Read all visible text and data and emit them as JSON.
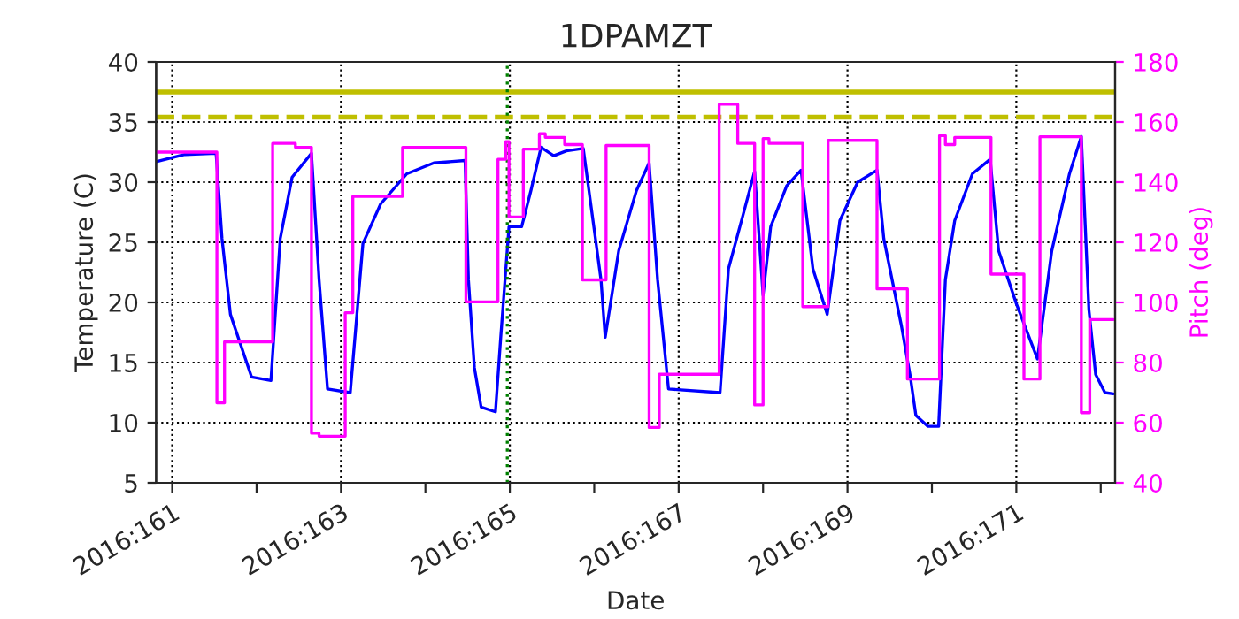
{
  "chart_data": {
    "type": "line",
    "title": "1DPAMZT",
    "xlabel": "Date",
    "ylabel": "Temperature (C)",
    "y2label": "Pitch (deg)",
    "xlim": [
      "2016-06-08T19:26",
      "2016-06-20T04:05"
    ],
    "ylim": [
      5,
      40
    ],
    "y2lim": [
      40,
      180
    ],
    "xticks": [
      {
        "value": "2016-06-09",
        "label": "2016:161"
      },
      {
        "value": "2016-06-10",
        "label": null
      },
      {
        "value": "2016-06-11",
        "label": "2016:163"
      },
      {
        "value": "2016-06-12",
        "label": null
      },
      {
        "value": "2016-06-13",
        "label": "2016:165"
      },
      {
        "value": "2016-06-14",
        "label": null
      },
      {
        "value": "2016-06-15",
        "label": "2016:167"
      },
      {
        "value": "2016-06-16",
        "label": null
      },
      {
        "value": "2016-06-17",
        "label": "2016:169"
      },
      {
        "value": "2016-06-18",
        "label": null
      },
      {
        "value": "2016-06-19",
        "label": "2016:171"
      },
      {
        "value": "2016-06-20",
        "label": null
      }
    ],
    "yticks": [
      5,
      10,
      15,
      20,
      25,
      30,
      35,
      40
    ],
    "y2ticks": [
      40,
      60,
      80,
      100,
      120,
      140,
      160,
      180
    ],
    "grid": true,
    "legend": false,
    "series": [
      {
        "color": "#0000ff",
        "x": [
          "2016-06-08T19:26",
          "2016-06-09T03:36",
          "2016-06-09T12:29",
          "2016-06-09T14:10",
          "2016-06-09T16:34",
          "2016-06-09T22:34",
          "2016-06-10T04:05",
          "2016-06-10T06:43",
          "2016-06-10T10:05",
          "2016-06-10T15:36",
          "2016-06-10T17:46",
          "2016-06-10T20:10",
          "2016-06-11T02:38",
          "2016-06-11T06:14",
          "2016-06-11T11:17",
          "2016-06-11T18:43",
          "2016-06-12T02:24",
          "2016-06-12T11:17",
          "2016-06-12T12:14",
          "2016-06-12T13:55",
          "2016-06-12T15:50",
          "2016-06-12T19:55",
          "2016-06-12T21:22",
          "2016-06-12T23:46",
          "2016-06-13T03:22",
          "2016-06-13T06:00",
          "2016-06-13T08:53",
          "2016-06-13T12:29",
          "2016-06-13T16:05",
          "2016-06-13T20:53",
          "2016-06-14T01:55",
          "2016-06-14T03:07",
          "2016-06-14T06:58",
          "2016-06-14T12:00",
          "2016-06-14T15:36",
          "2016-06-14T18:00",
          "2016-06-14T21:07",
          "2016-06-15T11:46",
          "2016-06-15T14:10",
          "2016-06-15T18:14",
          "2016-06-15T21:36",
          "2016-06-16T00:00",
          "2016-06-16T02:10",
          "2016-06-16T06:43",
          "2016-06-16T10:48",
          "2016-06-16T14:10",
          "2016-06-16T18:14",
          "2016-06-16T21:50",
          "2016-06-17T02:53",
          "2016-06-17T08:24",
          "2016-06-17T10:19",
          "2016-06-17T15:22",
          "2016-06-17T17:46",
          "2016-06-17T19:26",
          "2016-06-17T22:48",
          "2016-06-18T01:55",
          "2016-06-18T03:50",
          "2016-06-18T06:29",
          "2016-06-18T11:31",
          "2016-06-18T16:34",
          "2016-06-18T18:58",
          "2016-06-19T00:00",
          "2016-06-19T06:00",
          "2016-06-19T10:05",
          "2016-06-19T15:07",
          "2016-06-19T18:29",
          "2016-06-19T20:38",
          "2016-06-19T22:34",
          "2016-06-20T01:12",
          "2016-06-20T03:36"
        ],
        "values": [
          31.7,
          32.3,
          32.4,
          25.3,
          19.0,
          13.8,
          13.5,
          25.3,
          30.4,
          32.4,
          21.9,
          12.8,
          12.5,
          24.9,
          28.2,
          30.7,
          31.6,
          31.8,
          21.9,
          14.6,
          11.3,
          10.9,
          16.9,
          26.3,
          26.3,
          29.3,
          32.9,
          32.2,
          32.6,
          32.8,
          21.9,
          17.1,
          24.3,
          29.3,
          31.6,
          21.9,
          12.8,
          12.5,
          22.8,
          27.2,
          30.9,
          20.6,
          26.3,
          29.7,
          31.0,
          22.8,
          19.0,
          26.8,
          30.0,
          31.0,
          25.3,
          18.0,
          14.0,
          10.6,
          9.7,
          9.7,
          21.9,
          26.8,
          30.7,
          31.9,
          24.3,
          19.9,
          15.3,
          24.3,
          30.7,
          33.8,
          19.4,
          14.0,
          12.5,
          12.4
        ]
      },
      {
        "type": "step",
        "axis": "y2",
        "color": "#ff00ff",
        "x": [
          "2016-06-08T19:26",
          "2016-06-09T12:43",
          "2016-06-09T14:53",
          "2016-06-10T04:34",
          "2016-06-10T11:02",
          "2016-06-10T15:36",
          "2016-06-10T17:46",
          "2016-06-11T01:12",
          "2016-06-11T03:22",
          "2016-06-11T17:31",
          "2016-06-12T11:31",
          "2016-06-12T20:38",
          "2016-06-12T22:48",
          "2016-06-12T23:46",
          "2016-06-13T03:50",
          "2016-06-13T08:24",
          "2016-06-13T10:05",
          "2016-06-13T15:36",
          "2016-06-13T20:38",
          "2016-06-14T03:22",
          "2016-06-14T15:36",
          "2016-06-14T18:29",
          "2016-06-15T11:31",
          "2016-06-15T16:48",
          "2016-06-15T21:36",
          "2016-06-16T00:00",
          "2016-06-16T01:41",
          "2016-06-16T11:17",
          "2016-06-16T18:29",
          "2016-06-17T08:24",
          "2016-06-17T17:02",
          "2016-06-18T02:10",
          "2016-06-18T03:50",
          "2016-06-18T06:29",
          "2016-06-18T16:48",
          "2016-06-19T02:10",
          "2016-06-19T06:43",
          "2016-06-19T18:29",
          "2016-06-19T20:53",
          "2016-06-20T03:36"
        ],
        "values": [
          150,
          66.6,
          86.9,
          152.9,
          151.6,
          56.5,
          55.5,
          96.6,
          135.3,
          151.6,
          100.2,
          147.6,
          153.5,
          128.4,
          151.0,
          156.1,
          154.9,
          152.5,
          107.5,
          152.2,
          58.4,
          76.1,
          165.9,
          152.9,
          65.9,
          154.5,
          152.9,
          98.6,
          153.9,
          104.5,
          74.5,
          155.5,
          152.5,
          154.9,
          109.4,
          74.5,
          155.1,
          63.3,
          94.3,
          94.3
        ]
      }
    ],
    "ref_lines": [
      {
        "axis": "y",
        "value": 37.5,
        "color": "#bfbf00",
        "line_style": "solid"
      },
      {
        "axis": "y",
        "value": 35.4,
        "color": "#bfbf00",
        "line_style": "dashed"
      },
      {
        "axis": "x",
        "value": "2016-06-12T23:17",
        "color": "#008000",
        "line_style": "dotted"
      }
    ]
  }
}
